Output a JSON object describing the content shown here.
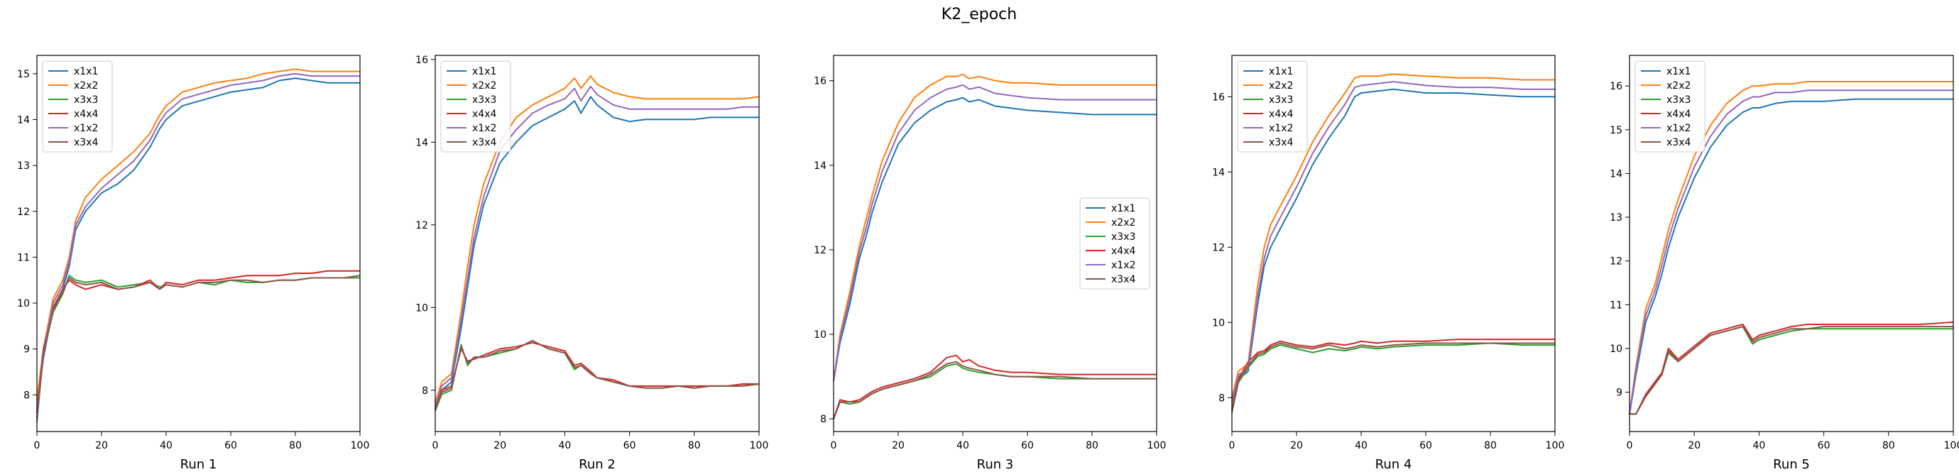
{
  "figure": {
    "suptitle": "K2_epoch"
  },
  "colors": {
    "x1x1": "#1f77b4",
    "x2x2": "#ff7f0e",
    "x3x3": "#2ca02c",
    "x4x4": "#d62728",
    "x1x2": "#9467bd",
    "x3x4": "#8c564b"
  },
  "chart_data": [
    {
      "type": "line",
      "title": "",
      "xlabel": "Run 1",
      "ylabel": "",
      "xlim": [
        0,
        100
      ],
      "ylim": [
        7.2,
        15.4
      ],
      "xticks": [
        0,
        20,
        40,
        60,
        80,
        100
      ],
      "yticks": [
        8,
        9,
        10,
        11,
        12,
        13,
        14,
        15
      ],
      "legend_position": "upper-left",
      "x": [
        0,
        2,
        5,
        8,
        10,
        12,
        15,
        20,
        25,
        30,
        35,
        38,
        40,
        45,
        50,
        55,
        60,
        65,
        70,
        75,
        80,
        85,
        90,
        95,
        100
      ],
      "series": [
        {
          "name": "x1x1",
          "values": [
            7.7,
            8.8,
            9.9,
            10.3,
            10.8,
            11.6,
            12.0,
            12.4,
            12.6,
            12.9,
            13.4,
            13.8,
            14.0,
            14.3,
            14.4,
            14.5,
            14.6,
            14.65,
            14.7,
            14.85,
            14.9,
            14.85,
            14.8,
            14.8,
            14.8
          ]
        },
        {
          "name": "x2x2",
          "values": [
            7.9,
            9.0,
            10.1,
            10.5,
            11.0,
            11.8,
            12.3,
            12.7,
            13.0,
            13.3,
            13.7,
            14.1,
            14.3,
            14.6,
            14.7,
            14.8,
            14.85,
            14.9,
            15.0,
            15.05,
            15.1,
            15.05,
            15.05,
            15.05,
            15.05
          ]
        },
        {
          "name": "x3x3",
          "values": [
            7.5,
            8.9,
            9.8,
            10.2,
            10.6,
            10.5,
            10.45,
            10.5,
            10.35,
            10.4,
            10.45,
            10.35,
            10.4,
            10.35,
            10.45,
            10.4,
            10.5,
            10.45,
            10.45,
            10.5,
            10.5,
            10.55,
            10.55,
            10.55,
            10.55
          ]
        },
        {
          "name": "x4x4",
          "values": [
            7.6,
            9.0,
            9.9,
            10.3,
            10.5,
            10.4,
            10.3,
            10.4,
            10.3,
            10.35,
            10.5,
            10.3,
            10.45,
            10.4,
            10.5,
            10.5,
            10.55,
            10.6,
            10.6,
            10.6,
            10.65,
            10.65,
            10.7,
            10.7,
            10.7
          ]
        },
        {
          "name": "x1x2",
          "values": [
            7.4,
            8.9,
            10.0,
            10.4,
            10.9,
            11.7,
            12.1,
            12.5,
            12.8,
            13.1,
            13.55,
            13.95,
            14.15,
            14.45,
            14.55,
            14.65,
            14.75,
            14.8,
            14.85,
            14.95,
            15.0,
            14.95,
            14.95,
            14.95,
            14.95
          ]
        },
        {
          "name": "x3x4",
          "values": [
            7.6,
            8.9,
            9.85,
            10.25,
            10.55,
            10.45,
            10.4,
            10.45,
            10.3,
            10.35,
            10.45,
            10.3,
            10.4,
            10.35,
            10.45,
            10.45,
            10.5,
            10.5,
            10.45,
            10.5,
            10.5,
            10.55,
            10.55,
            10.55,
            10.6
          ]
        }
      ]
    },
    {
      "type": "line",
      "title": "",
      "xlabel": "Run 2",
      "ylabel": "",
      "xlim": [
        0,
        100
      ],
      "ylim": [
        7.0,
        16.1
      ],
      "xticks": [
        0,
        20,
        40,
        60,
        80,
        100
      ],
      "yticks": [
        8,
        10,
        12,
        14,
        16
      ],
      "legend_position": "upper-left",
      "x": [
        0,
        2,
        5,
        8,
        10,
        12,
        15,
        20,
        25,
        30,
        35,
        40,
        43,
        45,
        48,
        50,
        55,
        60,
        65,
        70,
        75,
        80,
        85,
        90,
        95,
        100
      ],
      "series": [
        {
          "name": "x1x1",
          "values": [
            7.5,
            8.0,
            8.2,
            9.5,
            10.5,
            11.5,
            12.5,
            13.5,
            14.0,
            14.4,
            14.6,
            14.8,
            15.0,
            14.7,
            15.1,
            14.9,
            14.6,
            14.5,
            14.55,
            14.55,
            14.55,
            14.55,
            14.6,
            14.6,
            14.6,
            14.6
          ]
        },
        {
          "name": "x2x2",
          "values": [
            7.7,
            8.2,
            8.4,
            9.9,
            11.0,
            12.0,
            13.0,
            14.0,
            14.6,
            14.9,
            15.1,
            15.3,
            15.55,
            15.3,
            15.6,
            15.4,
            15.2,
            15.1,
            15.05,
            15.05,
            15.05,
            15.05,
            15.05,
            15.05,
            15.05,
            15.1
          ]
        },
        {
          "name": "x3x3",
          "values": [
            7.5,
            7.9,
            8.0,
            9.1,
            8.6,
            8.8,
            8.8,
            8.9,
            9.0,
            9.2,
            9.0,
            8.9,
            8.5,
            8.6,
            8.4,
            8.3,
            8.2,
            8.1,
            8.05,
            8.05,
            8.1,
            8.05,
            8.1,
            8.1,
            8.1,
            8.15
          ]
        },
        {
          "name": "x4x4",
          "values": [
            7.6,
            8.0,
            8.1,
            9.0,
            8.7,
            8.75,
            8.85,
            9.0,
            9.05,
            9.15,
            9.05,
            8.95,
            8.6,
            8.65,
            8.45,
            8.3,
            8.25,
            8.1,
            8.1,
            8.1,
            8.1,
            8.1,
            8.1,
            8.1,
            8.15,
            8.15
          ]
        },
        {
          "name": "x1x2",
          "values": [
            7.6,
            8.1,
            8.3,
            9.7,
            10.7,
            11.7,
            12.7,
            13.8,
            14.3,
            14.7,
            14.9,
            15.05,
            15.3,
            15.0,
            15.35,
            15.15,
            14.9,
            14.8,
            14.8,
            14.8,
            14.8,
            14.8,
            14.8,
            14.8,
            14.85,
            14.85
          ]
        },
        {
          "name": "x3x4",
          "values": [
            7.55,
            7.95,
            8.05,
            9.05,
            8.65,
            8.8,
            8.8,
            8.95,
            9.0,
            9.2,
            9.0,
            8.9,
            8.55,
            8.6,
            8.4,
            8.3,
            8.2,
            8.1,
            8.05,
            8.05,
            8.1,
            8.05,
            8.1,
            8.1,
            8.1,
            8.15
          ]
        }
      ]
    },
    {
      "type": "line",
      "title": "",
      "xlabel": "Run 3",
      "ylabel": "",
      "xlim": [
        0,
        100
      ],
      "ylim": [
        7.7,
        16.6
      ],
      "xticks": [
        0,
        20,
        40,
        60,
        80,
        100
      ],
      "yticks": [
        8,
        10,
        12,
        14,
        16
      ],
      "legend_position": "center-right",
      "x": [
        0,
        2,
        5,
        8,
        10,
        12,
        15,
        20,
        25,
        30,
        35,
        38,
        40,
        42,
        45,
        50,
        55,
        60,
        70,
        80,
        90,
        100
      ],
      "series": [
        {
          "name": "x1x1",
          "values": [
            8.9,
            9.8,
            10.7,
            11.8,
            12.3,
            12.9,
            13.6,
            14.5,
            15.0,
            15.3,
            15.5,
            15.55,
            15.6,
            15.5,
            15.55,
            15.4,
            15.35,
            15.3,
            15.25,
            15.2,
            15.2,
            15.2
          ]
        },
        {
          "name": "x2x2",
          "values": [
            8.9,
            10.0,
            11.0,
            12.1,
            12.7,
            13.3,
            14.1,
            15.0,
            15.6,
            15.9,
            16.1,
            16.1,
            16.15,
            16.05,
            16.1,
            16.0,
            15.95,
            15.95,
            15.9,
            15.9,
            15.9,
            15.9
          ]
        },
        {
          "name": "x3x3",
          "values": [
            8.0,
            8.4,
            8.35,
            8.4,
            8.5,
            8.6,
            8.7,
            8.8,
            8.9,
            9.0,
            9.25,
            9.3,
            9.2,
            9.15,
            9.1,
            9.05,
            9.0,
            9.0,
            8.95,
            8.95,
            8.95,
            8.95
          ]
        },
        {
          "name": "x4x4",
          "values": [
            8.0,
            8.45,
            8.4,
            8.45,
            8.55,
            8.65,
            8.75,
            8.85,
            8.95,
            9.1,
            9.45,
            9.5,
            9.35,
            9.4,
            9.25,
            9.15,
            9.1,
            9.1,
            9.05,
            9.05,
            9.05,
            9.05
          ]
        },
        {
          "name": "x1x2",
          "values": [
            8.9,
            9.9,
            10.85,
            11.95,
            12.5,
            13.1,
            13.85,
            14.75,
            15.3,
            15.6,
            15.8,
            15.85,
            15.9,
            15.8,
            15.85,
            15.7,
            15.65,
            15.6,
            15.55,
            15.55,
            15.55,
            15.55
          ]
        },
        {
          "name": "x3x4",
          "values": [
            8.0,
            8.4,
            8.4,
            8.4,
            8.5,
            8.6,
            8.7,
            8.8,
            8.9,
            9.05,
            9.3,
            9.35,
            9.25,
            9.2,
            9.15,
            9.05,
            9.0,
            9.0,
            9.0,
            8.95,
            8.95,
            8.95
          ]
        }
      ]
    },
    {
      "type": "line",
      "title": "",
      "xlabel": "Run 4",
      "ylabel": "",
      "xlim": [
        0,
        100
      ],
      "ylim": [
        7.1,
        17.1
      ],
      "xticks": [
        0,
        20,
        40,
        60,
        80,
        100
      ],
      "yticks": [
        8,
        10,
        12,
        14,
        16
      ],
      "legend_position": "upper-left",
      "x": [
        0,
        2,
        5,
        8,
        10,
        12,
        15,
        20,
        25,
        30,
        35,
        38,
        40,
        45,
        50,
        60,
        70,
        80,
        90,
        100
      ],
      "series": [
        {
          "name": "x1x1",
          "values": [
            7.9,
            8.5,
            8.7,
            10.5,
            11.5,
            12.0,
            12.5,
            13.3,
            14.2,
            14.9,
            15.5,
            16.0,
            16.1,
            16.15,
            16.2,
            16.1,
            16.1,
            16.05,
            16.0,
            16.0
          ]
        },
        {
          "name": "x2x2",
          "values": [
            8.0,
            8.7,
            8.9,
            11.0,
            12.0,
            12.6,
            13.1,
            13.9,
            14.8,
            15.5,
            16.1,
            16.5,
            16.55,
            16.55,
            16.6,
            16.55,
            16.5,
            16.5,
            16.45,
            16.45
          ]
        },
        {
          "name": "x3x3",
          "values": [
            7.6,
            8.4,
            8.8,
            9.1,
            9.15,
            9.3,
            9.4,
            9.3,
            9.2,
            9.3,
            9.25,
            9.3,
            9.35,
            9.3,
            9.35,
            9.4,
            9.4,
            9.45,
            9.4,
            9.4
          ]
        },
        {
          "name": "x4x4",
          "values": [
            7.7,
            8.5,
            8.95,
            9.2,
            9.25,
            9.4,
            9.5,
            9.4,
            9.35,
            9.45,
            9.4,
            9.45,
            9.5,
            9.45,
            9.5,
            9.5,
            9.55,
            9.55,
            9.55,
            9.55
          ]
        },
        {
          "name": "x1x2",
          "values": [
            7.9,
            8.6,
            8.8,
            10.7,
            11.7,
            12.3,
            12.8,
            13.6,
            14.5,
            15.2,
            15.8,
            16.25,
            16.3,
            16.35,
            16.4,
            16.3,
            16.25,
            16.25,
            16.2,
            16.2
          ]
        },
        {
          "name": "x3x4",
          "values": [
            7.65,
            8.45,
            8.85,
            9.15,
            9.2,
            9.35,
            9.45,
            9.35,
            9.3,
            9.4,
            9.3,
            9.35,
            9.4,
            9.35,
            9.4,
            9.45,
            9.45,
            9.45,
            9.45,
            9.45
          ]
        }
      ]
    },
    {
      "type": "line",
      "title": "",
      "xlabel": "Run 5",
      "ylabel": "",
      "xlim": [
        0,
        100
      ],
      "ylim": [
        8.1,
        16.7
      ],
      "xticks": [
        0,
        20,
        40,
        60,
        80,
        100
      ],
      "yticks": [
        9,
        10,
        11,
        12,
        13,
        14,
        15,
        16
      ],
      "legend_position": "upper-left",
      "x": [
        0,
        2,
        5,
        8,
        10,
        12,
        15,
        20,
        25,
        30,
        35,
        38,
        40,
        45,
        50,
        55,
        60,
        70,
        80,
        90,
        100
      ],
      "series": [
        {
          "name": "x1x1",
          "values": [
            8.5,
            9.4,
            10.6,
            11.2,
            11.7,
            12.3,
            13.0,
            13.9,
            14.6,
            15.1,
            15.4,
            15.5,
            15.5,
            15.6,
            15.65,
            15.65,
            15.65,
            15.7,
            15.7,
            15.7,
            15.7
          ]
        },
        {
          "name": "x2x2",
          "values": [
            8.5,
            9.6,
            10.9,
            11.5,
            12.1,
            12.7,
            13.4,
            14.4,
            15.1,
            15.6,
            15.9,
            16.0,
            16.0,
            16.05,
            16.05,
            16.1,
            16.1,
            16.1,
            16.1,
            16.1,
            16.1
          ]
        },
        {
          "name": "x3x3",
          "values": [
            8.5,
            8.5,
            8.9,
            9.2,
            9.4,
            9.9,
            9.7,
            10.0,
            10.3,
            10.4,
            10.5,
            10.1,
            10.2,
            10.3,
            10.4,
            10.45,
            10.45,
            10.45,
            10.45,
            10.45,
            10.45
          ]
        },
        {
          "name": "x4x4",
          "values": [
            8.5,
            8.5,
            8.95,
            9.25,
            9.45,
            10.0,
            9.75,
            10.05,
            10.35,
            10.45,
            10.55,
            10.2,
            10.3,
            10.4,
            10.5,
            10.55,
            10.55,
            10.55,
            10.55,
            10.55,
            10.6
          ]
        },
        {
          "name": "x1x2",
          "values": [
            8.5,
            9.5,
            10.75,
            11.35,
            11.9,
            12.5,
            13.2,
            14.15,
            14.85,
            15.35,
            15.65,
            15.75,
            15.75,
            15.85,
            15.85,
            15.9,
            15.9,
            15.9,
            15.9,
            15.9,
            15.9
          ]
        },
        {
          "name": "x3x4",
          "values": [
            8.5,
            8.5,
            8.9,
            9.2,
            9.4,
            9.95,
            9.7,
            10.0,
            10.3,
            10.4,
            10.5,
            10.15,
            10.25,
            10.35,
            10.45,
            10.45,
            10.5,
            10.5,
            10.5,
            10.5,
            10.5
          ]
        }
      ]
    }
  ]
}
